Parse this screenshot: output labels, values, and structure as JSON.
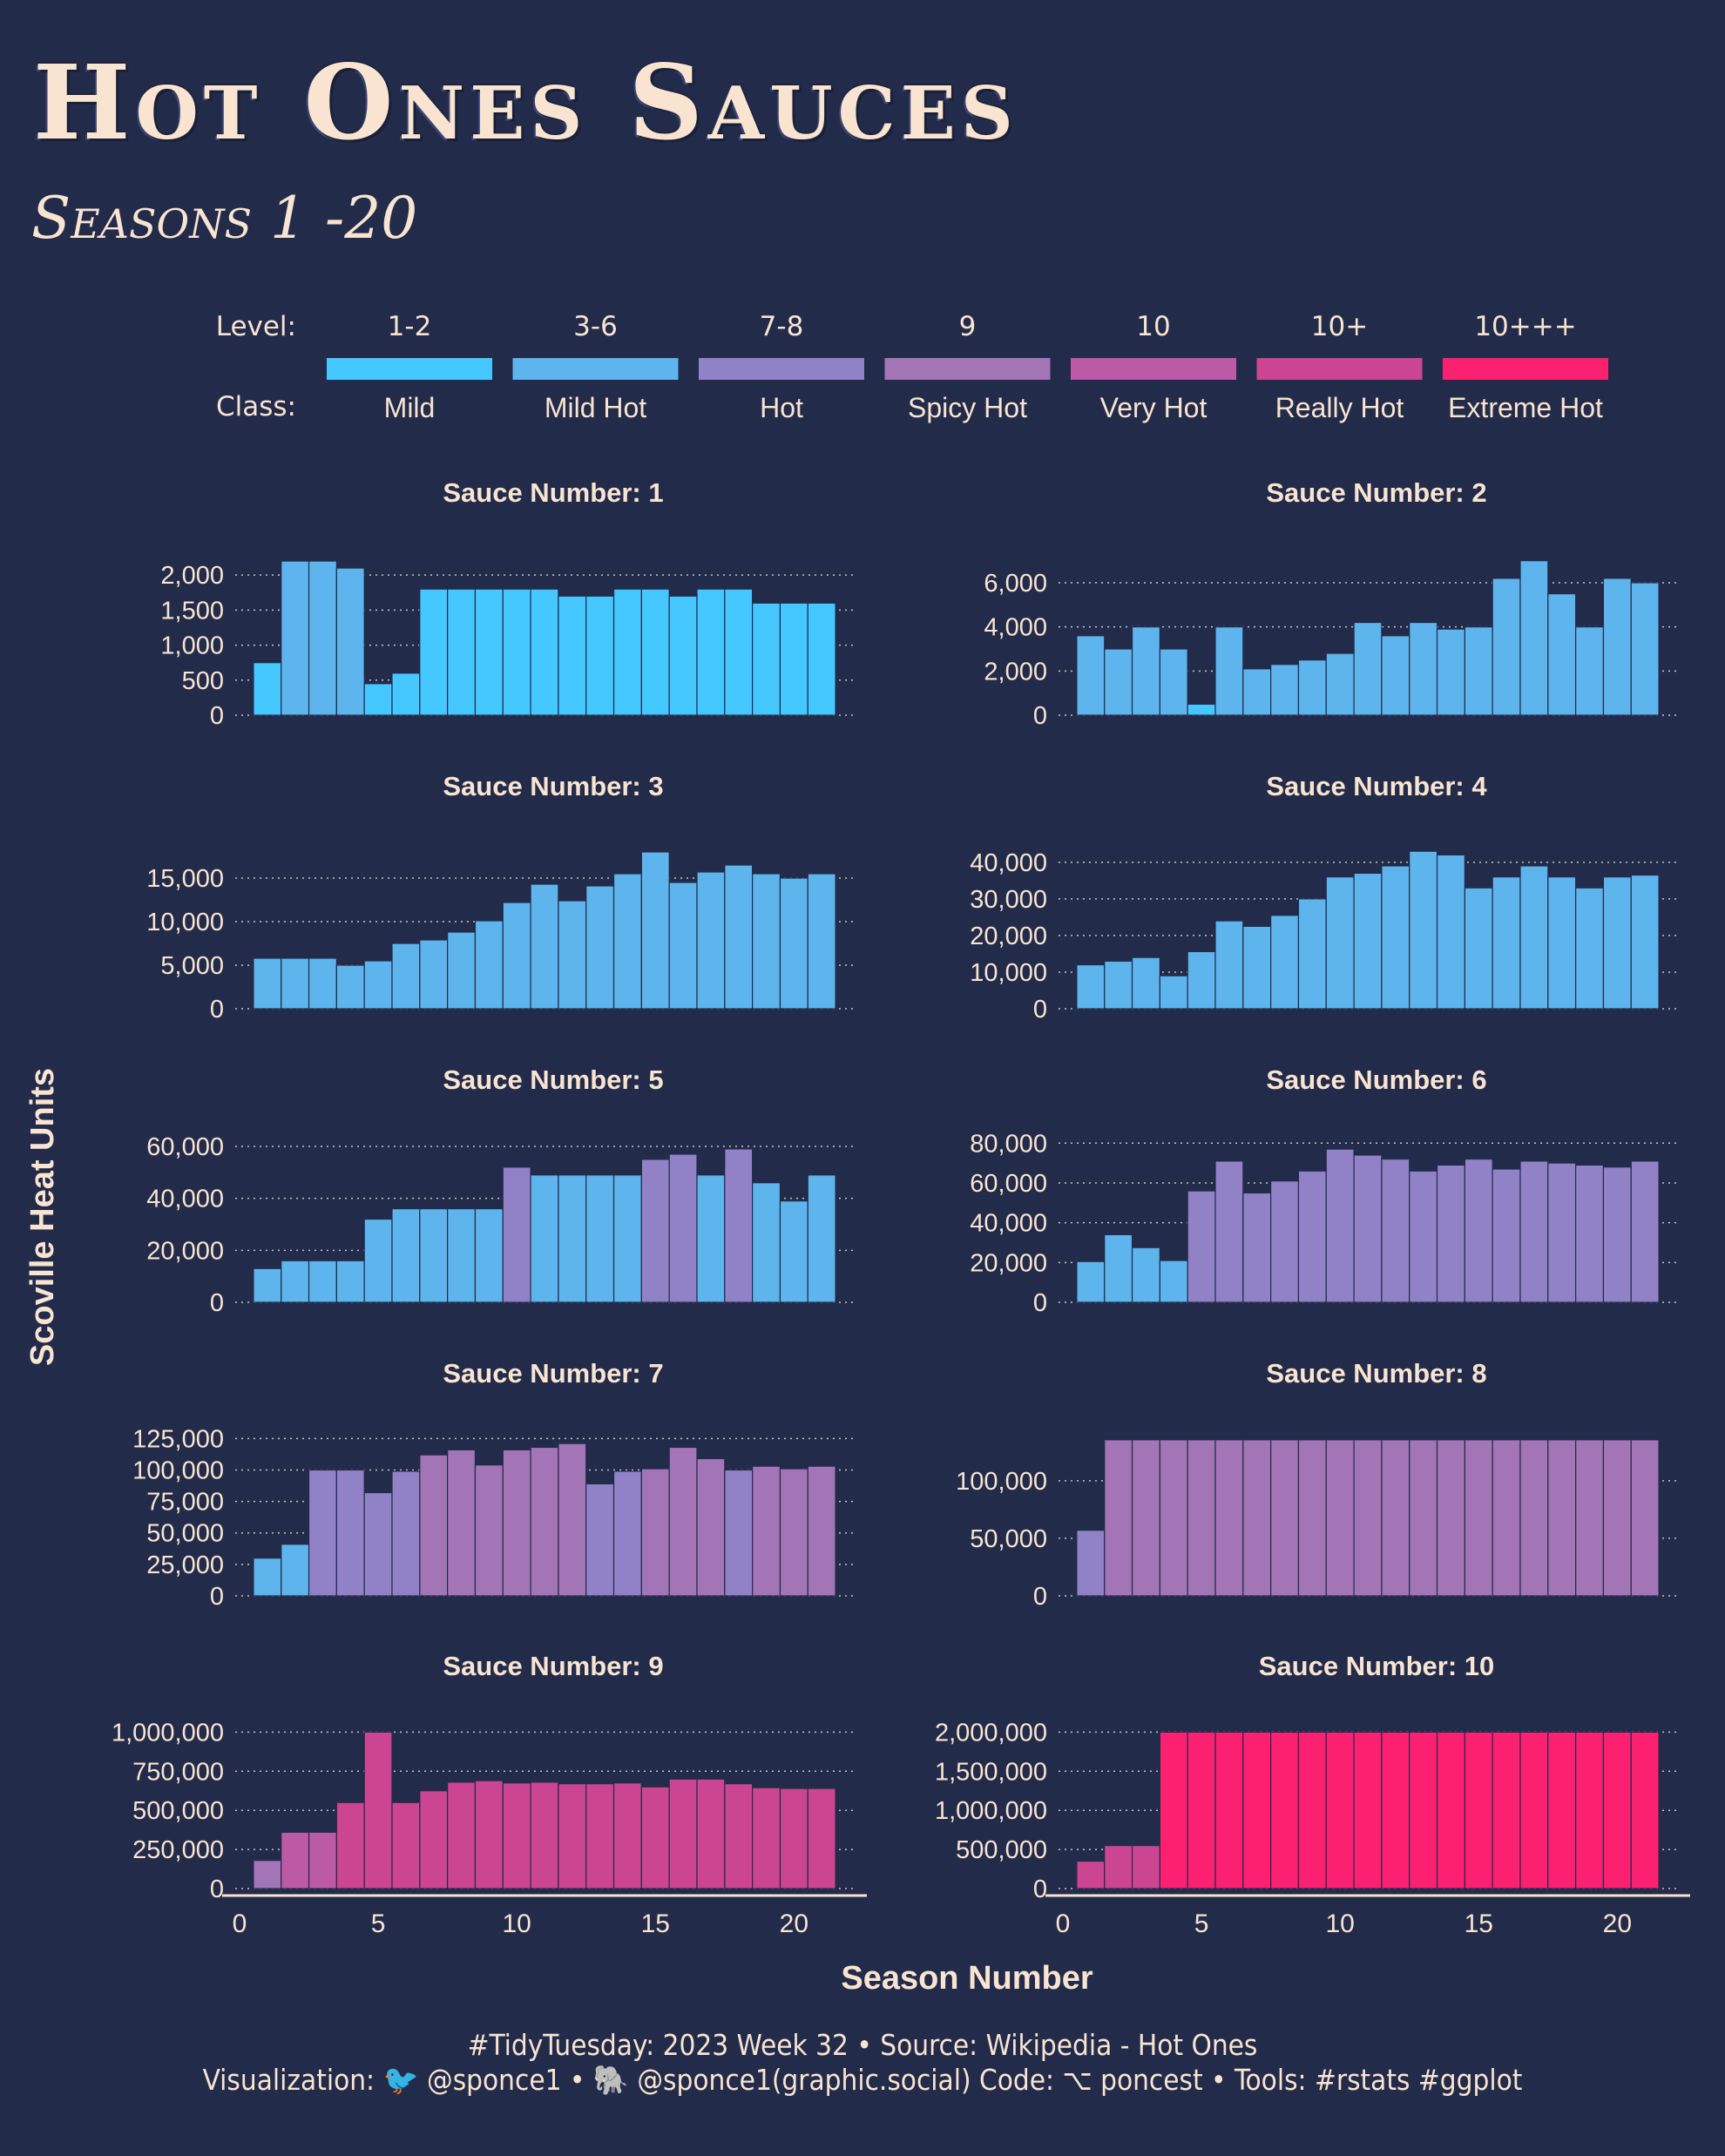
{
  "title": "Hot Ones Sauces",
  "subtitle": "Seasons 1 -20",
  "y_axis_label": "Scoville Heat Units",
  "x_axis_label": "Season Number",
  "footer_line1": "#TidyTuesday: 2023 Week 32 • Source: Wikipedia - Hot Ones",
  "footer_line2": "Visualization: 🐦 @sponce1 • 🐘 @sponce1(graphic.social) Code: ⌥ poncest • Tools: #rstats #ggplot",
  "legend": {
    "level_label": "Level:",
    "class_label": "Class:",
    "items": [
      {
        "level": "1-2",
        "class": "Mild",
        "color": "#45c8ff"
      },
      {
        "level": "3-6",
        "class": "Mild Hot",
        "color": "#5eb4ec"
      },
      {
        "level": "7-8",
        "class": "Hot",
        "color": "#9182c8"
      },
      {
        "level": "9",
        "class": "Spicy Hot",
        "color": "#a374b6"
      },
      {
        "level": "10",
        "class": "Very Hot",
        "color": "#bc5aa6"
      },
      {
        "level": "10+",
        "class": "Really Hot",
        "color": "#cc4590"
      },
      {
        "level": "10+++",
        "class": "Extreme Hot",
        "color": "#fc2070"
      }
    ]
  },
  "chart_data": [
    {
      "type": "bar",
      "title": "Sauce Number: 1",
      "x": [
        1,
        2,
        3,
        4,
        5,
        6,
        7,
        8,
        9,
        10,
        11,
        12,
        13,
        14,
        15,
        16,
        17,
        18,
        19,
        20,
        21
      ],
      "values": [
        750,
        2200,
        2200,
        2100,
        450,
        600,
        1800,
        1800,
        1800,
        1800,
        1800,
        1700,
        1700,
        1800,
        1800,
        1700,
        1800,
        1800,
        1600,
        1600,
        1600
      ],
      "classes": [
        0,
        1,
        1,
        1,
        0,
        0,
        0,
        0,
        0,
        0,
        0,
        0,
        0,
        0,
        0,
        0,
        0,
        0,
        0,
        0,
        0
      ],
      "yticks": [
        0,
        500,
        1000,
        1500,
        2000
      ],
      "ylim": [
        0,
        2300
      ],
      "xlim": [
        0,
        22
      ]
    },
    {
      "type": "bar",
      "title": "Sauce Number: 2",
      "x": [
        1,
        2,
        3,
        4,
        5,
        6,
        7,
        8,
        9,
        10,
        11,
        12,
        13,
        14,
        15,
        16,
        17,
        18,
        19,
        20,
        21
      ],
      "values": [
        3600,
        3000,
        4000,
        3000,
        500,
        4000,
        2100,
        2300,
        2500,
        2800,
        4200,
        3600,
        4200,
        3900,
        4000,
        6200,
        7000,
        5500,
        4000,
        6200,
        6000
      ],
      "classes": [
        1,
        1,
        1,
        1,
        0,
        1,
        1,
        1,
        1,
        1,
        1,
        1,
        1,
        1,
        1,
        1,
        1,
        1,
        1,
        1,
        1
      ],
      "yticks": [
        0,
        2000,
        4000,
        6000
      ],
      "ylim": [
        0,
        7300
      ],
      "xlim": [
        0,
        22
      ]
    },
    {
      "type": "bar",
      "title": "Sauce Number: 3",
      "x": [
        1,
        2,
        3,
        4,
        5,
        6,
        7,
        8,
        9,
        10,
        11,
        12,
        13,
        14,
        15,
        16,
        17,
        18,
        19,
        20,
        21
      ],
      "values": [
        5800,
        5800,
        5800,
        5000,
        5500,
        7500,
        7900,
        8800,
        10100,
        12200,
        14300,
        12400,
        14100,
        15500,
        18000,
        14500,
        15700,
        16500,
        15500,
        15000,
        15500
      ],
      "classes": [
        1,
        1,
        1,
        1,
        1,
        1,
        1,
        1,
        1,
        1,
        1,
        1,
        1,
        1,
        1,
        1,
        1,
        1,
        1,
        1,
        1
      ],
      "yticks": [
        0,
        5000,
        10000,
        15000
      ],
      "ylim": [
        0,
        18500
      ],
      "xlim": [
        0,
        22
      ]
    },
    {
      "type": "bar",
      "title": "Sauce Number: 4",
      "x": [
        1,
        2,
        3,
        4,
        5,
        6,
        7,
        8,
        9,
        10,
        11,
        12,
        13,
        14,
        15,
        16,
        17,
        18,
        19,
        20,
        21
      ],
      "values": [
        12000,
        13000,
        14000,
        9000,
        15600,
        24000,
        22500,
        25500,
        30000,
        36000,
        37000,
        39000,
        43000,
        42000,
        33000,
        36000,
        39000,
        36000,
        33000,
        36000,
        36500
      ],
      "classes": [
        1,
        1,
        1,
        1,
        1,
        1,
        1,
        1,
        1,
        1,
        1,
        1,
        1,
        1,
        1,
        1,
        1,
        1,
        1,
        1,
        1
      ],
      "yticks": [
        0,
        10000,
        20000,
        30000,
        40000
      ],
      "ylim": [
        0,
        44000
      ],
      "xlim": [
        0,
        22
      ]
    },
    {
      "type": "bar",
      "title": "Sauce Number: 5",
      "x": [
        1,
        2,
        3,
        4,
        5,
        6,
        7,
        8,
        9,
        10,
        11,
        12,
        13,
        14,
        15,
        16,
        17,
        18,
        19,
        20,
        21
      ],
      "values": [
        13000,
        16000,
        16000,
        16000,
        32000,
        36000,
        36000,
        36000,
        36000,
        52000,
        49000,
        49000,
        49000,
        49000,
        55000,
        57000,
        49000,
        59000,
        46000,
        39000,
        49000
      ],
      "classes": [
        1,
        1,
        1,
        1,
        1,
        1,
        1,
        1,
        1,
        2,
        1,
        1,
        1,
        1,
        2,
        2,
        1,
        2,
        1,
        1,
        1
      ],
      "yticks": [
        0,
        20000,
        40000,
        60000
      ],
      "ylim": [
        0,
        62000
      ],
      "xlim": [
        0,
        22
      ]
    },
    {
      "type": "bar",
      "title": "Sauce Number: 6",
      "x": [
        1,
        2,
        3,
        4,
        5,
        6,
        7,
        8,
        9,
        10,
        11,
        12,
        13,
        14,
        15,
        16,
        17,
        18,
        19,
        20,
        21
      ],
      "values": [
        20500,
        34000,
        27500,
        21000,
        56000,
        71000,
        55000,
        61000,
        66000,
        77000,
        74000,
        72000,
        66000,
        69000,
        72000,
        67000,
        71000,
        70000,
        69000,
        68000,
        71000
      ],
      "classes": [
        1,
        1,
        1,
        1,
        2,
        2,
        2,
        2,
        2,
        2,
        2,
        2,
        2,
        2,
        2,
        2,
        2,
        2,
        2,
        2,
        2
      ],
      "yticks": [
        0,
        20000,
        40000,
        60000,
        80000
      ],
      "ylim": [
        0,
        81000
      ],
      "xlim": [
        0,
        22
      ]
    },
    {
      "type": "bar",
      "title": "Sauce Number: 7",
      "x": [
        1,
        2,
        3,
        4,
        5,
        6,
        7,
        8,
        9,
        10,
        11,
        12,
        13,
        14,
        15,
        16,
        17,
        18,
        19,
        20,
        21
      ],
      "values": [
        30000,
        41000,
        100000,
        100000,
        82000,
        99000,
        112000,
        116000,
        104000,
        116000,
        118000,
        121000,
        89000,
        99000,
        101000,
        118000,
        109000,
        100000,
        103000,
        101000,
        103000
      ],
      "classes": [
        1,
        1,
        2,
        2,
        2,
        2,
        3,
        3,
        3,
        3,
        3,
        3,
        2,
        2,
        3,
        3,
        3,
        2,
        3,
        3,
        3
      ],
      "yticks": [
        0,
        25000,
        50000,
        75000,
        100000,
        125000
      ],
      "ylim": [
        0,
        128000
      ],
      "xlim": [
        0,
        22
      ]
    },
    {
      "type": "bar",
      "title": "Sauce Number: 8",
      "x": [
        1,
        2,
        3,
        4,
        5,
        6,
        7,
        8,
        9,
        10,
        11,
        12,
        13,
        14,
        15,
        16,
        17,
        18,
        19,
        20,
        21
      ],
      "values": [
        57000,
        135600,
        135600,
        135600,
        135600,
        135600,
        135600,
        135600,
        135600,
        135600,
        135600,
        135600,
        135600,
        135600,
        135600,
        135600,
        135600,
        135600,
        135600,
        135600,
        135600
      ],
      "classes": [
        2,
        3,
        3,
        3,
        3,
        3,
        3,
        3,
        3,
        3,
        3,
        3,
        3,
        3,
        3,
        3,
        3,
        3,
        3,
        3,
        3
      ],
      "yticks": [
        0,
        50000,
        100000
      ],
      "ylim": [
        0,
        140000
      ],
      "xlim": [
        0,
        22
      ]
    },
    {
      "type": "bar",
      "title": "Sauce Number: 9",
      "x": [
        1,
        2,
        3,
        4,
        5,
        6,
        7,
        8,
        9,
        10,
        11,
        12,
        13,
        14,
        15,
        16,
        17,
        18,
        19,
        20,
        21
      ],
      "values": [
        180000,
        360000,
        360000,
        550000,
        1000000,
        550000,
        625000,
        680000,
        690000,
        675000,
        680000,
        670000,
        670000,
        675000,
        650000,
        700000,
        700000,
        670000,
        645000,
        640000,
        640000
      ],
      "classes": [
        3,
        4,
        4,
        5,
        5,
        5,
        5,
        5,
        5,
        5,
        5,
        5,
        5,
        5,
        5,
        5,
        5,
        5,
        5,
        5,
        5
      ],
      "yticks": [
        0,
        250000,
        500000,
        750000,
        1000000
      ],
      "ylim": [
        0,
        1030000
      ],
      "xlim": [
        0,
        22
      ]
    },
    {
      "type": "bar",
      "title": "Sauce Number: 10",
      "x": [
        1,
        2,
        3,
        4,
        5,
        6,
        7,
        8,
        9,
        10,
        11,
        12,
        13,
        14,
        15,
        16,
        17,
        18,
        19,
        20,
        21
      ],
      "values": [
        350000,
        550000,
        550000,
        2000000,
        2000000,
        2000000,
        2000000,
        2000000,
        2000000,
        2000000,
        2000000,
        2000000,
        2000000,
        2000000,
        2000000,
        2000000,
        2000000,
        2000000,
        2000000,
        2000000,
        2000000
      ],
      "classes": [
        5,
        5,
        5,
        6,
        6,
        6,
        6,
        6,
        6,
        6,
        6,
        6,
        6,
        6,
        6,
        6,
        6,
        6,
        6,
        6,
        6
      ],
      "yticks": [
        0,
        500000,
        1000000,
        1500000,
        2000000
      ],
      "ylim": [
        0,
        2060000
      ],
      "xlim": [
        0,
        22
      ]
    }
  ],
  "x_ticks": [
    0,
    5,
    10,
    15,
    20
  ]
}
